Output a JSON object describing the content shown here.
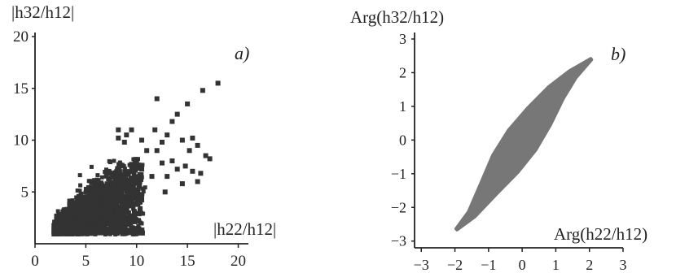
{
  "chart_data": [
    {
      "panel": "a)",
      "type": "scatter",
      "title": "",
      "xlabel": "|h22/h12|",
      "ylabel": "|h32/h12|",
      "xlim": [
        0,
        21
      ],
      "ylim": [
        0,
        20
      ],
      "xticks": [
        0,
        5,
        10,
        15,
        20
      ],
      "yticks": [
        5,
        10,
        15,
        20
      ],
      "grid": false,
      "marker_color": "#333333",
      "dense_region": {
        "description": "dense cloud of points, strong positive correlation",
        "x_range": [
          1.5,
          11
        ],
        "y_range": [
          0.8,
          8
        ]
      },
      "points": [
        [
          18,
          15.5
        ],
        [
          16.5,
          14.8
        ],
        [
          15,
          13.5
        ],
        [
          12,
          14
        ],
        [
          14,
          12.5
        ],
        [
          13.5,
          11.8
        ],
        [
          15.5,
          10.2
        ],
        [
          16,
          9.5
        ],
        [
          14.5,
          10
        ],
        [
          15.2,
          9
        ],
        [
          16.8,
          8.5
        ],
        [
          17.2,
          8.2
        ],
        [
          13,
          10.5
        ],
        [
          12.5,
          9.8
        ],
        [
          11.8,
          11
        ],
        [
          12,
          9
        ],
        [
          10.5,
          10
        ],
        [
          11,
          9
        ],
        [
          9.5,
          11
        ],
        [
          9,
          10.5
        ],
        [
          8.8,
          9.8
        ],
        [
          8.2,
          11
        ],
        [
          8.2,
          10.2
        ],
        [
          13.5,
          8
        ],
        [
          14,
          7.2
        ],
        [
          14.8,
          7.5
        ],
        [
          13,
          6.5
        ],
        [
          12.5,
          7.8
        ],
        [
          15.5,
          7
        ],
        [
          16.3,
          6.8
        ],
        [
          14.5,
          5.8
        ],
        [
          16,
          6
        ],
        [
          12.8,
          5
        ],
        [
          11.5,
          6.5
        ],
        [
          10.5,
          7.2
        ],
        [
          9.5,
          7.5
        ]
      ]
    },
    {
      "panel": "b)",
      "type": "scatter",
      "title": "",
      "xlabel": "Arg(h22/h12)",
      "ylabel": "Arg(h32/h12)",
      "xlim": [
        -3.2,
        3
      ],
      "ylim": [
        -3.2,
        3
      ],
      "xticks": [
        -3,
        -2,
        -1,
        0,
        1,
        2,
        3
      ],
      "yticks": [
        -3,
        -2,
        -1,
        0,
        1,
        2,
        3
      ],
      "grid": false,
      "marker_color": "#777777",
      "band": {
        "description": "elongated diagonal band of points, roughly y ≈ 1.35x",
        "center": [
          [
            -1.95,
            -2.65
          ],
          [
            -1.5,
            -2.2
          ],
          [
            -1,
            -1.45
          ],
          [
            -0.5,
            -0.7
          ],
          [
            0,
            0
          ],
          [
            0.5,
            0.7
          ],
          [
            1,
            1.4
          ],
          [
            1.5,
            1.95
          ],
          [
            2.05,
            2.4
          ]
        ],
        "half_width": [
          0.02,
          0.12,
          0.28,
          0.45,
          0.5,
          0.42,
          0.28,
          0.14,
          0.02
        ]
      }
    }
  ]
}
